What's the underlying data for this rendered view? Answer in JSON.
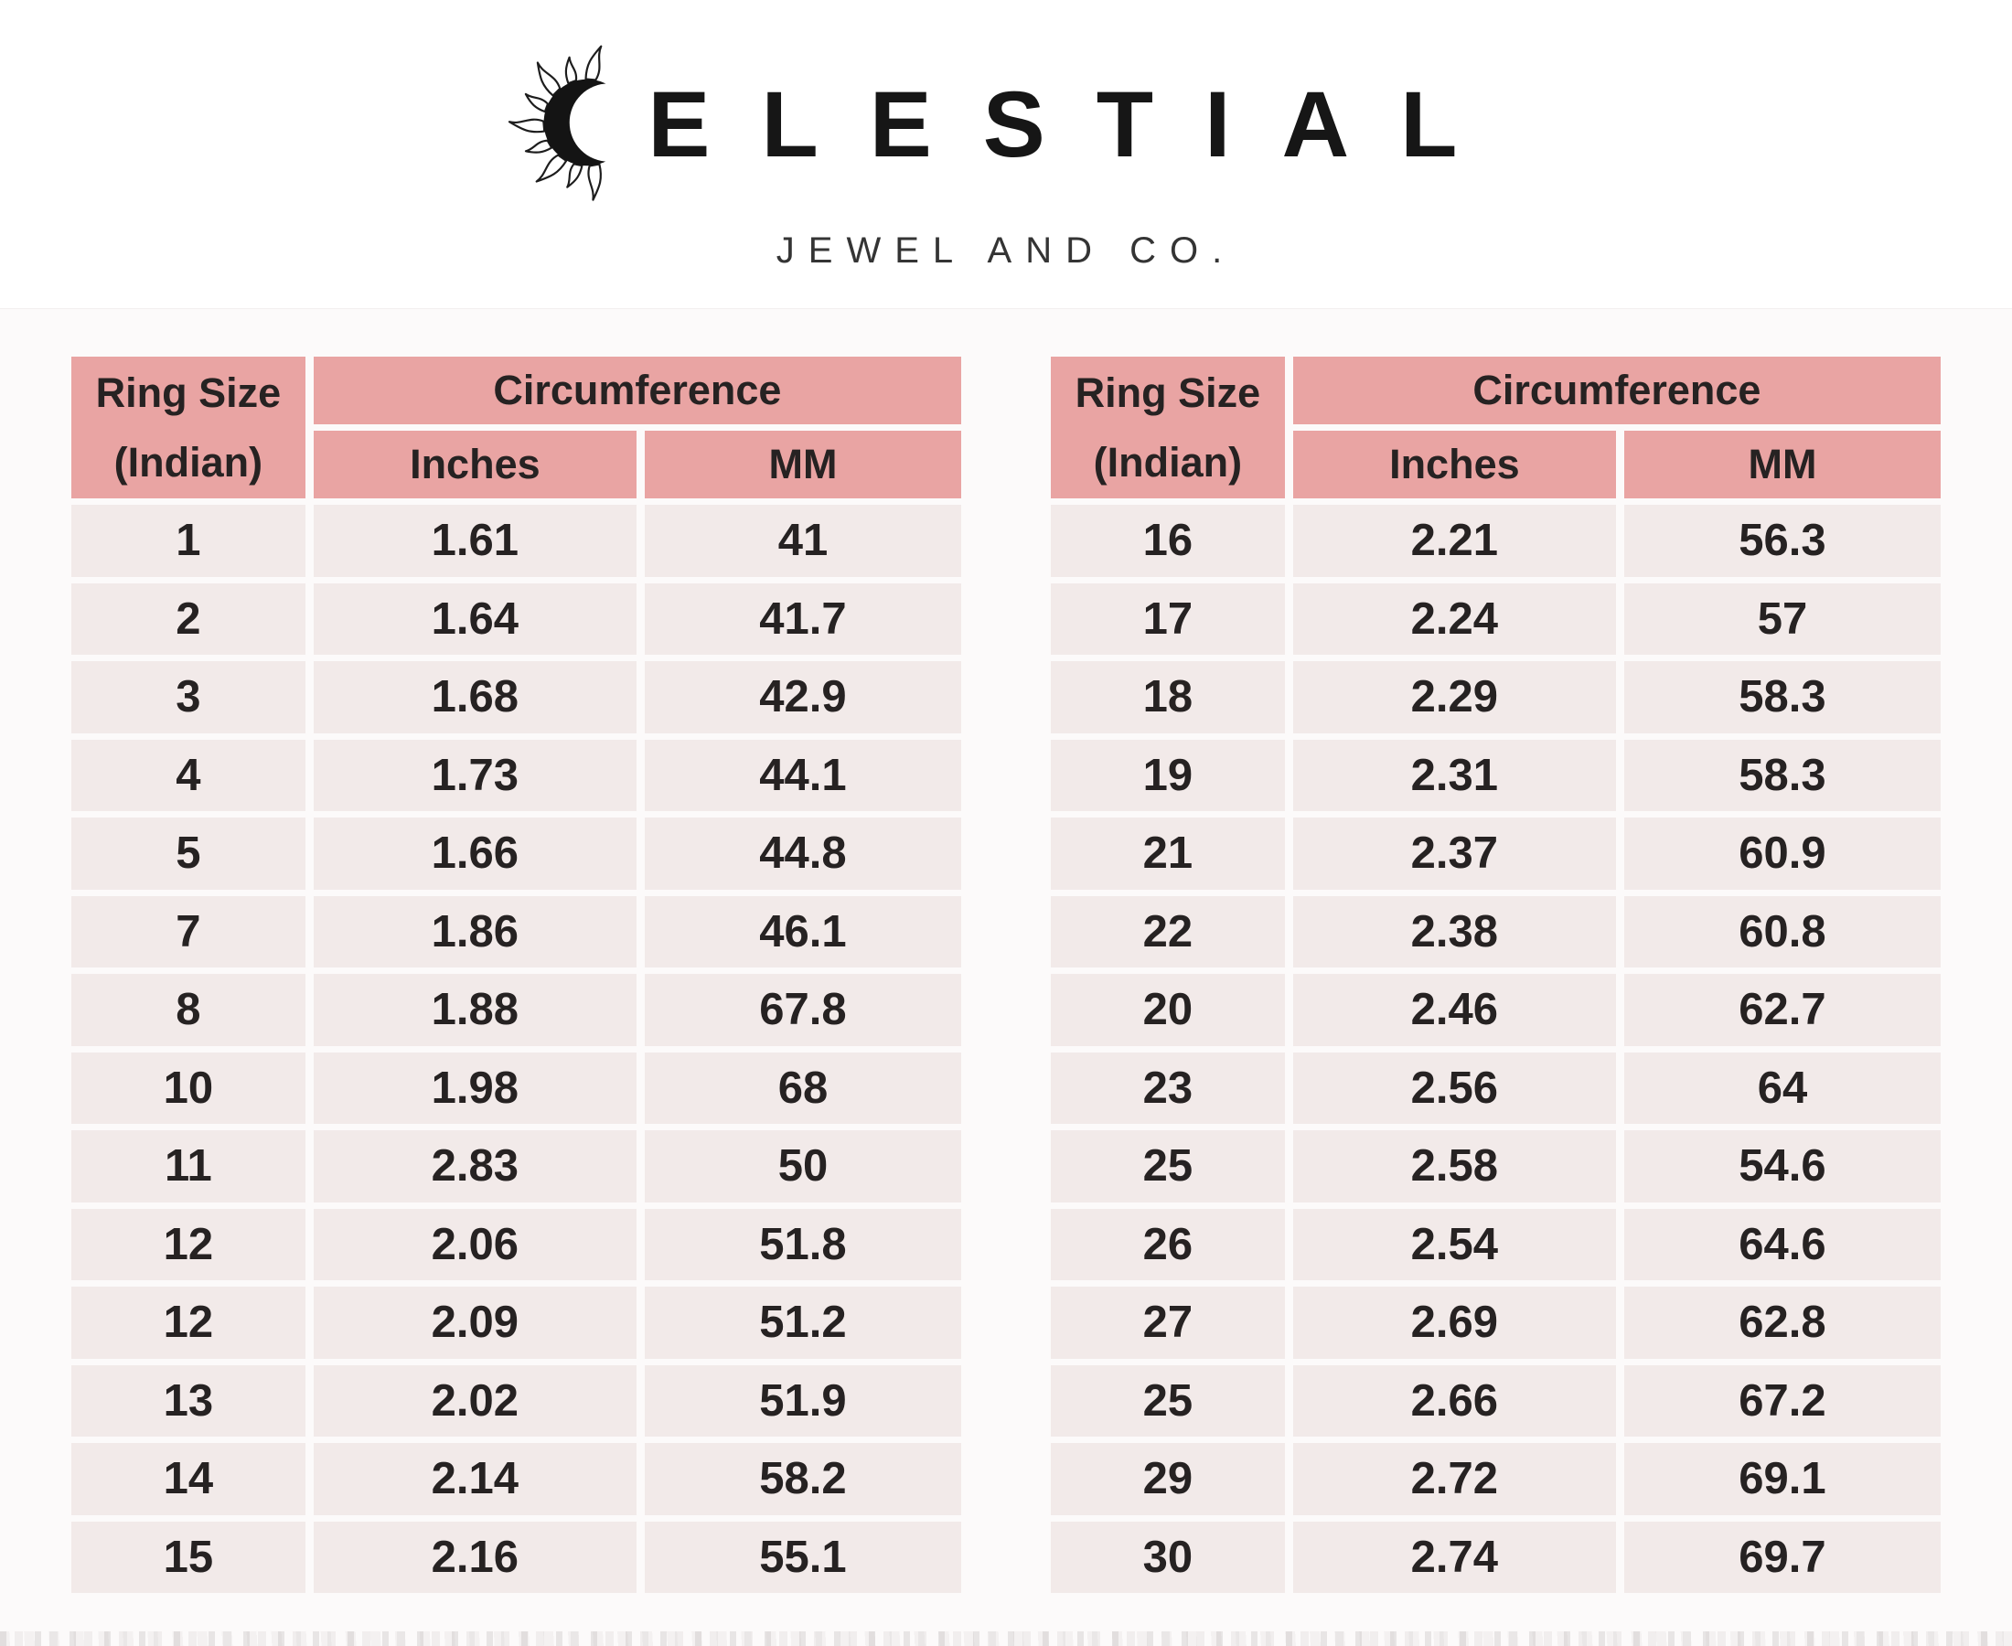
{
  "brand": {
    "wordmark_display": "ELESTIAL",
    "reads_as": "CELESTIAL",
    "subtitle": "JEWEL AND CO."
  },
  "headers": {
    "ring_size_line1": "Ring Size",
    "ring_size_line2": "(Indian)",
    "circumference": "Circumference",
    "inches": "Inches",
    "mm": "MM"
  },
  "colors": {
    "header_bg": "#e9a4a3",
    "row_bg": "#f2eae9",
    "text_color": "#262222",
    "page_tint": "#fcfafa"
  },
  "chart_data": [
    {
      "type": "table",
      "title": "Ring size conversion chart (left table)",
      "columns": [
        "Ring Size (Indian)",
        "Circumference Inches",
        "Circumference MM"
      ],
      "rows": [
        [
          "1",
          "1.61",
          "41"
        ],
        [
          "2",
          "1.64",
          "41.7"
        ],
        [
          "3",
          "1.68",
          "42.9"
        ],
        [
          "4",
          "1.73",
          "44.1"
        ],
        [
          "5",
          "1.66",
          "44.8"
        ],
        [
          "7",
          "1.86",
          "46.1"
        ],
        [
          "8",
          "1.88",
          "67.8"
        ],
        [
          "10",
          "1.98",
          "68"
        ],
        [
          "11",
          "2.83",
          "50"
        ],
        [
          "12",
          "2.06",
          "51.8"
        ],
        [
          "12",
          "2.09",
          "51.2"
        ],
        [
          "13",
          "2.02",
          "51.9"
        ],
        [
          "14",
          "2.14",
          "58.2"
        ],
        [
          "15",
          "2.16",
          "55.1"
        ]
      ]
    },
    {
      "type": "table",
      "title": "Ring size conversion chart (right table)",
      "columns": [
        "Ring Size (Indian)",
        "Circumference Inches",
        "Circumference MM"
      ],
      "rows": [
        [
          "16",
          "2.21",
          "56.3"
        ],
        [
          "17",
          "2.24",
          "57"
        ],
        [
          "18",
          "2.29",
          "58.3"
        ],
        [
          "19",
          "2.31",
          "58.3"
        ],
        [
          "21",
          "2.37",
          "60.9"
        ],
        [
          "22",
          "2.38",
          "60.8"
        ],
        [
          "20",
          "2.46",
          "62.7"
        ],
        [
          "23",
          "2.56",
          "64"
        ],
        [
          "25",
          "2.58",
          "54.6"
        ],
        [
          "26",
          "2.54",
          "64.6"
        ],
        [
          "27",
          "2.69",
          "62.8"
        ],
        [
          "25",
          "2.66",
          "67.2"
        ],
        [
          "29",
          "2.72",
          "69.1"
        ],
        [
          "30",
          "2.74",
          "69.7"
        ]
      ]
    }
  ]
}
